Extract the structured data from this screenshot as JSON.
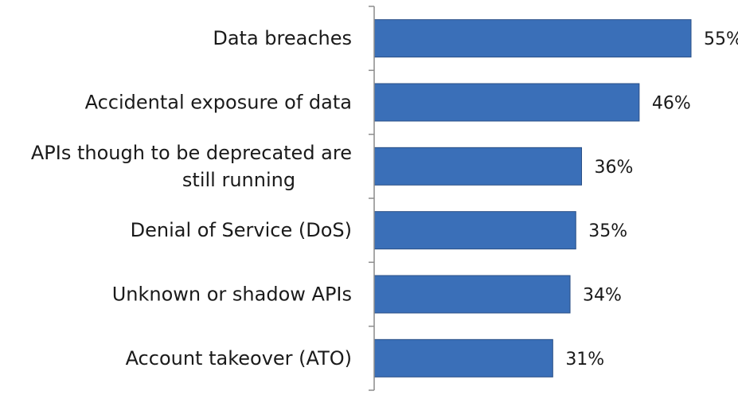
{
  "chart_data": {
    "type": "bar",
    "orientation": "horizontal",
    "title": "",
    "xlabel": "",
    "ylabel": "",
    "categories": [
      [
        "Data breaches"
      ],
      [
        "Accidental exposure of data"
      ],
      [
        "APIs though to be deprecated are",
        "still running"
      ],
      [
        "Denial of Service (DoS)"
      ],
      [
        "Unknown or shadow APIs"
      ],
      [
        "Account takeover (ATO)"
      ]
    ],
    "values": [
      55,
      46,
      36,
      35,
      34,
      31
    ],
    "value_labels": [
      "55%",
      "46%",
      "36%",
      "35%",
      "34%",
      "31%"
    ],
    "xlim": [
      0,
      55
    ],
    "grid": false,
    "legend": "none",
    "colors": {
      "bar_fill": "#3a6fb8",
      "bar_stroke": "#2a4f86",
      "axis": "#8c8c8c",
      "text": "#1a1a1a"
    }
  }
}
